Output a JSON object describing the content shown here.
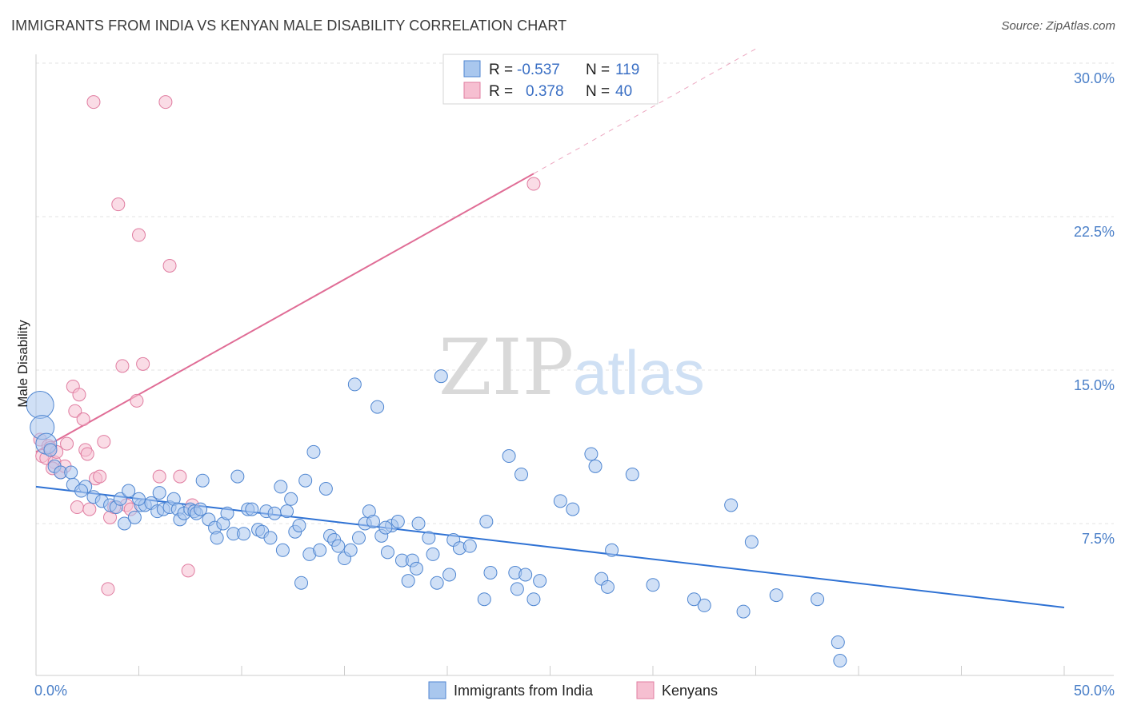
{
  "title": "IMMIGRANTS FROM INDIA VS KENYAN MALE DISABILITY CORRELATION CHART",
  "source": "Source: ZipAtlas.com",
  "watermark": {
    "zip": "ZIP",
    "atlas": "atlas"
  },
  "colors": {
    "india_fill": "#a9c7ee",
    "india_stroke": "#4f86d1",
    "india_line": "#2f72d4",
    "kenya_fill": "#f6bfd1",
    "kenya_stroke": "#e07ca0",
    "kenya_line": "#e06d96",
    "tick_label": "#4a7fc8",
    "grid": "#e3e3e3"
  },
  "legend": {
    "row1": {
      "r_label": "R =",
      "r_value": "-0.537",
      "n_label": "N =",
      "n_value": "119"
    },
    "row2": {
      "r_label": "R =",
      "r_value": "0.378",
      "n_label": "N =",
      "n_value": "40"
    }
  },
  "chart_data": {
    "type": "scatter",
    "title": "IMMIGRANTS FROM INDIA VS KENYAN MALE DISABILITY CORRELATION CHART",
    "xlabel": "",
    "ylabel": "Male Disability",
    "xlim": [
      0,
      50
    ],
    "ylim": [
      0,
      30
    ],
    "x_tick_labels": [
      "0.0%",
      "50.0%"
    ],
    "y_ticks": [
      7.5,
      15.0,
      22.5,
      30.0
    ],
    "y_tick_labels": [
      "7.5%",
      "15.0%",
      "22.5%",
      "30.0%"
    ],
    "legend_position": "bottom-center",
    "series": [
      {
        "name": "Immigrants from India",
        "trend": {
          "x": [
            0,
            50
          ],
          "y": [
            9.3,
            3.4
          ],
          "dashed_extension": false
        },
        "points": [
          [
            0.2,
            13.3
          ],
          [
            0.3,
            12.2
          ],
          [
            0.5,
            11.4
          ],
          [
            0.7,
            11.1
          ],
          [
            0.9,
            10.3
          ],
          [
            1.2,
            10.0
          ],
          [
            1.7,
            10.0
          ],
          [
            1.8,
            9.4
          ],
          [
            2.4,
            9.3
          ],
          [
            2.2,
            9.1
          ],
          [
            2.8,
            8.8
          ],
          [
            3.2,
            8.6
          ],
          [
            3.6,
            8.4
          ],
          [
            3.9,
            8.3
          ],
          [
            4.1,
            8.7
          ],
          [
            4.3,
            7.5
          ],
          [
            4.5,
            9.1
          ],
          [
            4.8,
            7.8
          ],
          [
            5.1,
            8.4
          ],
          [
            5.3,
            8.4
          ],
          [
            5.6,
            8.5
          ],
          [
            5.9,
            8.1
          ],
          [
            6.2,
            8.2
          ],
          [
            6.5,
            8.3
          ],
          [
            6.7,
            8.7
          ],
          [
            6.9,
            8.2
          ],
          [
            7.0,
            7.7
          ],
          [
            7.2,
            8.0
          ],
          [
            7.5,
            8.2
          ],
          [
            7.7,
            8.1
          ],
          [
            7.8,
            8.0
          ],
          [
            8.0,
            8.2
          ],
          [
            8.1,
            9.6
          ],
          [
            8.4,
            7.7
          ],
          [
            8.7,
            7.3
          ],
          [
            8.8,
            6.8
          ],
          [
            9.1,
            7.5
          ],
          [
            9.3,
            8.0
          ],
          [
            9.6,
            7.0
          ],
          [
            9.8,
            9.8
          ],
          [
            10.1,
            7.0
          ],
          [
            10.3,
            8.2
          ],
          [
            10.5,
            8.2
          ],
          [
            10.8,
            7.2
          ],
          [
            11.0,
            7.1
          ],
          [
            11.2,
            8.1
          ],
          [
            11.4,
            6.8
          ],
          [
            11.6,
            8.0
          ],
          [
            12.0,
            6.2
          ],
          [
            12.2,
            8.1
          ],
          [
            12.4,
            8.7
          ],
          [
            12.6,
            7.1
          ],
          [
            12.8,
            7.4
          ],
          [
            12.9,
            4.6
          ],
          [
            13.1,
            9.6
          ],
          [
            13.3,
            6.0
          ],
          [
            13.5,
            11.0
          ],
          [
            13.8,
            6.2
          ],
          [
            14.1,
            9.2
          ],
          [
            14.3,
            6.9
          ],
          [
            14.5,
            6.7
          ],
          [
            14.7,
            6.4
          ],
          [
            15.0,
            5.8
          ],
          [
            15.3,
            6.2
          ],
          [
            15.5,
            14.3
          ],
          [
            15.7,
            6.8
          ],
          [
            16.0,
            7.5
          ],
          [
            16.2,
            8.1
          ],
          [
            16.4,
            7.6
          ],
          [
            16.6,
            13.2
          ],
          [
            16.8,
            6.9
          ],
          [
            17.1,
            6.1
          ],
          [
            17.3,
            7.4
          ],
          [
            17.6,
            7.6
          ],
          [
            17.8,
            5.7
          ],
          [
            18.1,
            4.7
          ],
          [
            18.3,
            5.7
          ],
          [
            18.5,
            5.3
          ],
          [
            18.6,
            7.5
          ],
          [
            19.1,
            6.8
          ],
          [
            19.3,
            6.0
          ],
          [
            19.5,
            4.6
          ],
          [
            19.7,
            14.7
          ],
          [
            20.1,
            5.0
          ],
          [
            20.3,
            6.7
          ],
          [
            20.6,
            6.3
          ],
          [
            21.1,
            6.4
          ],
          [
            21.8,
            3.8
          ],
          [
            21.9,
            7.6
          ],
          [
            22.1,
            5.1
          ],
          [
            23.0,
            10.8
          ],
          [
            23.3,
            5.1
          ],
          [
            23.6,
            9.9
          ],
          [
            23.8,
            5.0
          ],
          [
            24.2,
            3.8
          ],
          [
            24.5,
            4.7
          ],
          [
            25.5,
            8.6
          ],
          [
            26.1,
            8.2
          ],
          [
            27.0,
            10.9
          ],
          [
            27.2,
            10.3
          ],
          [
            27.5,
            4.8
          ],
          [
            27.8,
            4.4
          ],
          [
            28.0,
            6.2
          ],
          [
            29.0,
            9.9
          ],
          [
            30.0,
            4.5
          ],
          [
            32.0,
            3.8
          ],
          [
            32.5,
            3.5
          ],
          [
            33.8,
            8.4
          ],
          [
            34.4,
            3.2
          ],
          [
            34.8,
            6.6
          ],
          [
            36.0,
            4.0
          ],
          [
            38.0,
            3.8
          ],
          [
            39.0,
            1.7
          ],
          [
            39.1,
            0.8
          ],
          [
            17.0,
            7.3
          ],
          [
            6.0,
            9.0
          ],
          [
            11.9,
            9.3
          ],
          [
            5.0,
            8.7
          ],
          [
            23.4,
            4.3
          ]
        ]
      },
      {
        "name": "Kenyans",
        "trend": {
          "x": [
            0,
            24.2
          ],
          "y": [
            11.0,
            24.6
          ],
          "dashed_extension": true,
          "dashed_to": [
            35,
            30.7
          ]
        },
        "points": [
          [
            0.2,
            11.6
          ],
          [
            0.3,
            10.8
          ],
          [
            0.5,
            10.7
          ],
          [
            0.6,
            11.3
          ],
          [
            0.7,
            11.2
          ],
          [
            0.9,
            10.5
          ],
          [
            1.0,
            11.0
          ],
          [
            1.2,
            10.0
          ],
          [
            1.4,
            10.3
          ],
          [
            1.5,
            11.4
          ],
          [
            1.8,
            14.2
          ],
          [
            1.9,
            13.0
          ],
          [
            2.0,
            8.3
          ],
          [
            2.1,
            13.8
          ],
          [
            2.3,
            12.6
          ],
          [
            2.4,
            11.1
          ],
          [
            2.6,
            8.2
          ],
          [
            2.8,
            28.1
          ],
          [
            2.9,
            9.7
          ],
          [
            3.1,
            9.8
          ],
          [
            3.3,
            11.5
          ],
          [
            3.5,
            4.3
          ],
          [
            3.6,
            7.8
          ],
          [
            3.8,
            8.3
          ],
          [
            4.0,
            23.1
          ],
          [
            4.2,
            15.2
          ],
          [
            4.4,
            8.4
          ],
          [
            4.6,
            8.2
          ],
          [
            4.9,
            13.5
          ],
          [
            5.0,
            21.6
          ],
          [
            5.2,
            15.3
          ],
          [
            6.0,
            9.8
          ],
          [
            6.3,
            28.1
          ],
          [
            6.5,
            20.1
          ],
          [
            7.0,
            9.8
          ],
          [
            7.4,
            5.2
          ],
          [
            7.6,
            8.4
          ],
          [
            2.5,
            10.9
          ],
          [
            0.8,
            10.2
          ],
          [
            24.2,
            24.1
          ]
        ]
      }
    ]
  },
  "bottom_legend": {
    "india": "Immigrants from India",
    "kenya": "Kenyans"
  }
}
